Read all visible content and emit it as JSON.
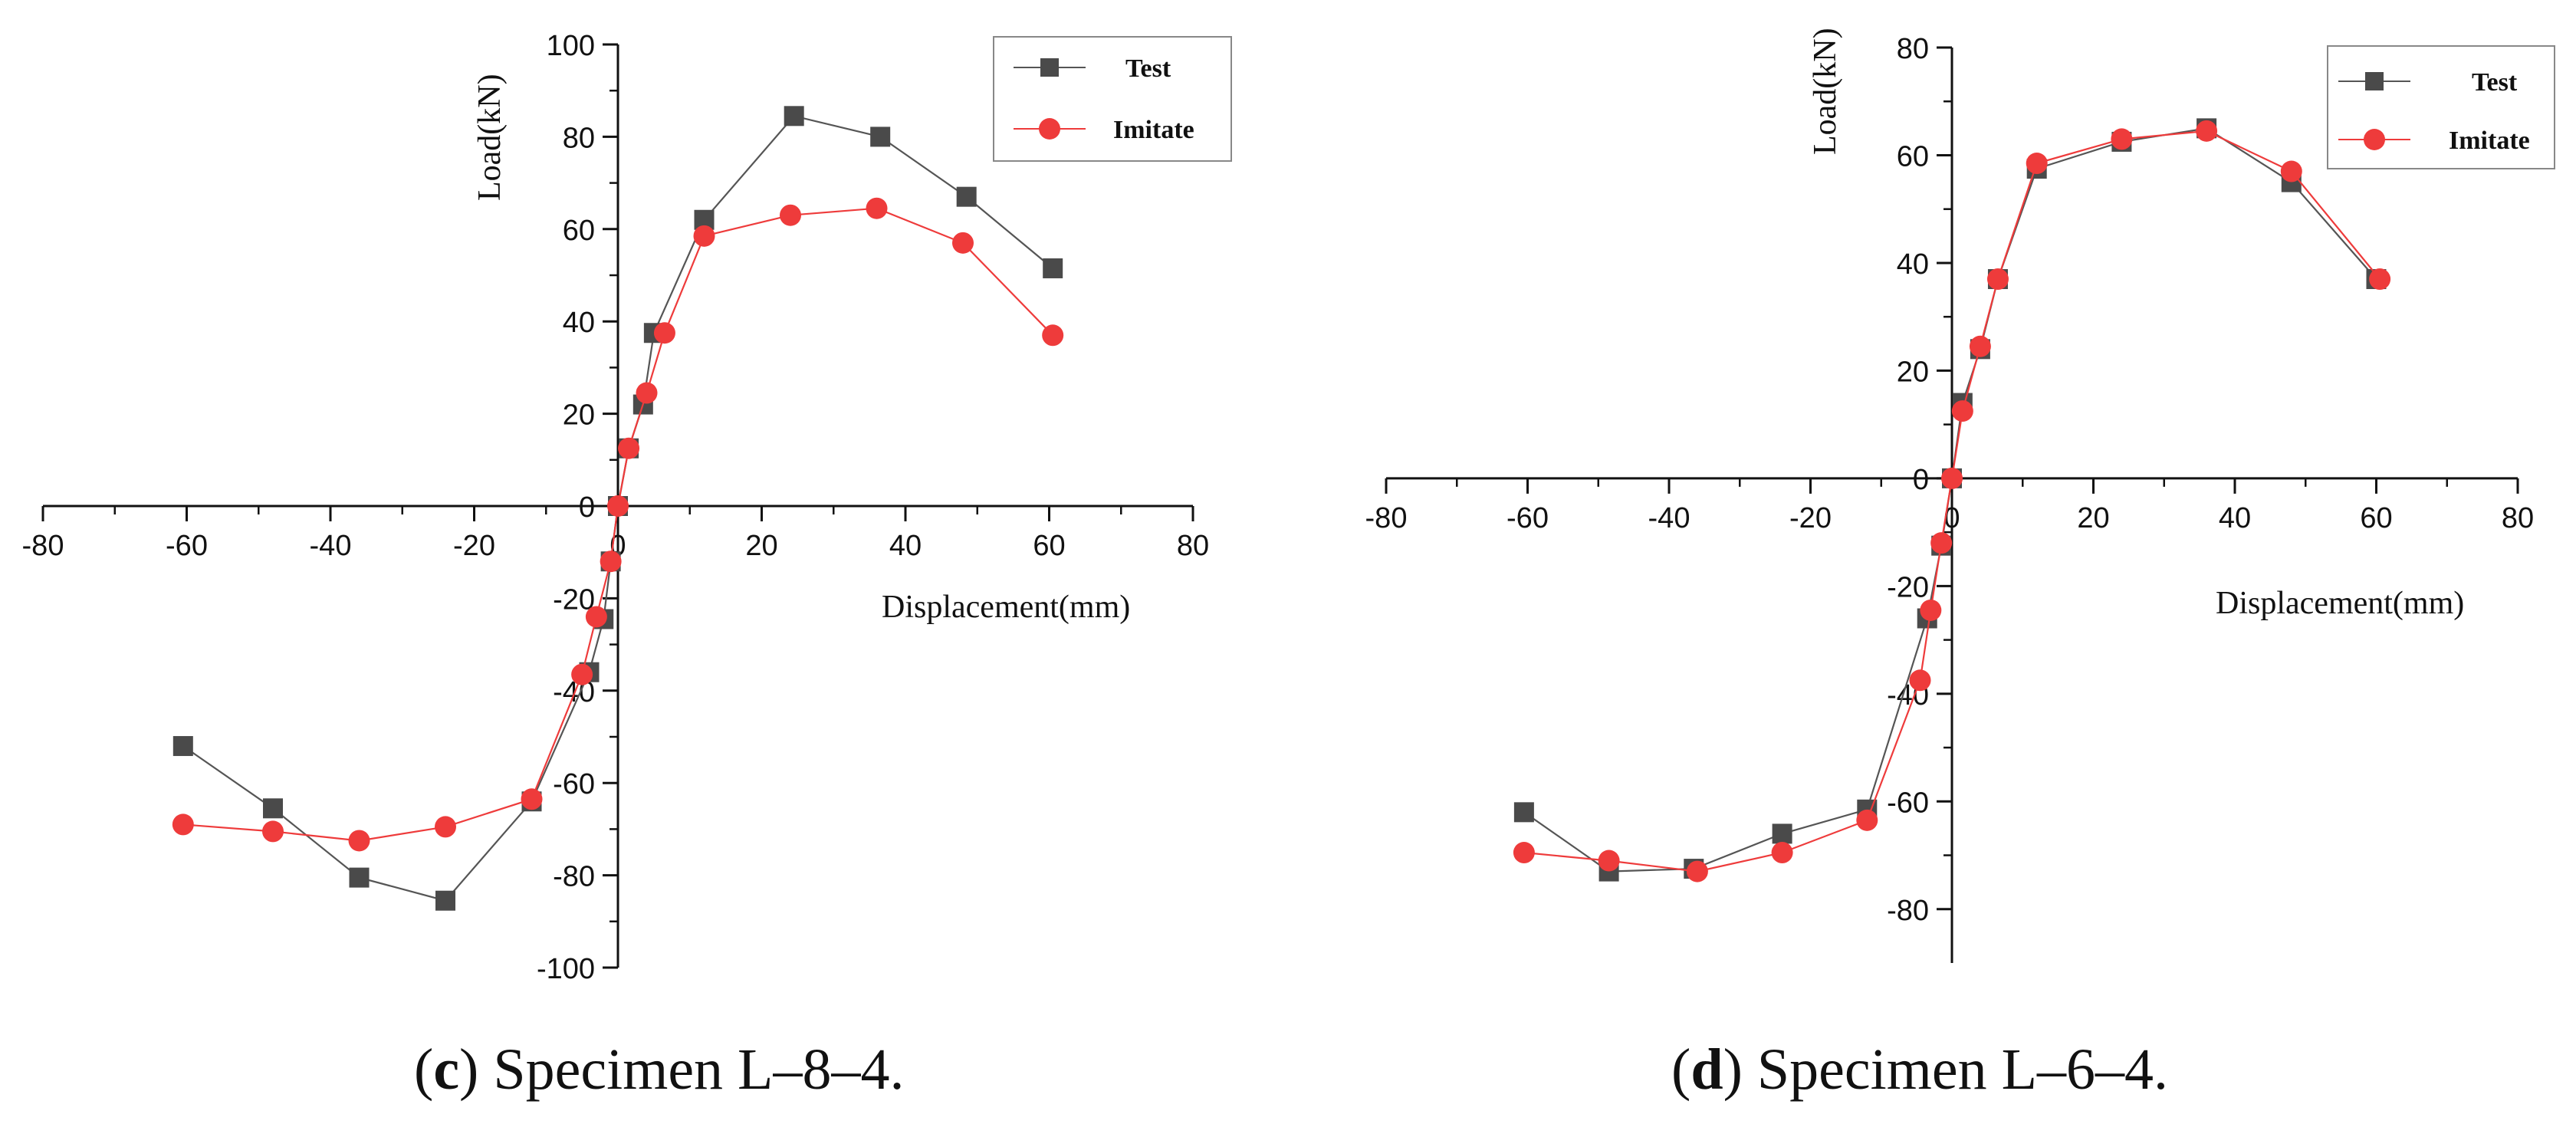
{
  "chart_data": [
    {
      "type": "line",
      "caption": {
        "open": "(",
        "letter": "c",
        "rest": ") Specimen L–8–4."
      },
      "xlabel": "Displacement(mm)",
      "ylabel": "Load(kN)",
      "xlim": [
        -80,
        80
      ],
      "ylim": [
        -100,
        100
      ],
      "xticks": [
        -80,
        -60,
        -40,
        -20,
        0,
        20,
        40,
        60,
        80
      ],
      "yticks": [
        -100,
        -80,
        -60,
        -40,
        -20,
        0,
        20,
        40,
        60,
        80,
        100
      ],
      "legend_position": "top-right",
      "series": [
        {
          "name": "Test",
          "color": "#555555",
          "marker": "square",
          "points": [
            [
              -60.5,
              -52
            ],
            [
              -48,
              -65.5
            ],
            [
              -36,
              -80.5
            ],
            [
              -24,
              -85.5
            ],
            [
              -12,
              -64
            ],
            [
              -4,
              -36
            ],
            [
              -2,
              -24.5
            ],
            [
              -1,
              -12
            ],
            [
              0,
              0
            ],
            [
              1.5,
              12.5
            ],
            [
              3.5,
              22
            ],
            [
              5,
              37.5
            ],
            [
              12,
              62
            ],
            [
              24.5,
              84.5
            ],
            [
              36.5,
              80
            ],
            [
              48.5,
              67
            ],
            [
              60.5,
              51.5
            ]
          ]
        },
        {
          "name": "Imitate",
          "color": "#ee3b3b",
          "marker": "circle",
          "points": [
            [
              -60.5,
              -69
            ],
            [
              -48,
              -70.5
            ],
            [
              -36,
              -72.5
            ],
            [
              -24,
              -69.5
            ],
            [
              -12,
              -63.5
            ],
            [
              -5,
              -36.5
            ],
            [
              -3,
              -24
            ],
            [
              -1,
              -12
            ],
            [
              0,
              0
            ],
            [
              1.5,
              12.5
            ],
            [
              4,
              24.5
            ],
            [
              6.5,
              37.5
            ],
            [
              12,
              58.5
            ],
            [
              24,
              63
            ],
            [
              36,
              64.5
            ],
            [
              48,
              57
            ],
            [
              60.5,
              37
            ]
          ]
        }
      ]
    },
    {
      "type": "line",
      "caption": {
        "open": "(",
        "letter": "d",
        "rest": ") Specimen L–6–4."
      },
      "xlabel": "Displacement(mm)",
      "ylabel": "Load(kN)",
      "xlim": [
        -80,
        80
      ],
      "ylim": [
        -90,
        80
      ],
      "xticks": [
        -80,
        -60,
        -40,
        -20,
        0,
        20,
        40,
        60,
        80
      ],
      "yticks": [
        -80,
        -60,
        -40,
        -20,
        0,
        20,
        40,
        60,
        80
      ],
      "legend_position": "top-right",
      "series": [
        {
          "name": "Test",
          "color": "#555555",
          "marker": "square",
          "points": [
            [
              -60.5,
              -62
            ],
            [
              -48.5,
              -73
            ],
            [
              -36.5,
              -72.5
            ],
            [
              -24,
              -66
            ],
            [
              -12,
              -61.5
            ],
            [
              -3.5,
              -26
            ],
            [
              -1.5,
              -12.5
            ],
            [
              0,
              0
            ],
            [
              1.5,
              14
            ],
            [
              4,
              24
            ],
            [
              6.5,
              37
            ],
            [
              12,
              57.5
            ],
            [
              24,
              62.5
            ],
            [
              36,
              65
            ],
            [
              48,
              55
            ],
            [
              60,
              37
            ]
          ]
        },
        {
          "name": "Imitate",
          "color": "#ee3b3b",
          "marker": "circle",
          "points": [
            [
              -60.5,
              -69.5
            ],
            [
              -48.5,
              -71
            ],
            [
              -36,
              -73
            ],
            [
              -24,
              -69.5
            ],
            [
              -12,
              -63.5
            ],
            [
              -4.5,
              -37.5
            ],
            [
              -3,
              -24.5
            ],
            [
              -1.5,
              -12
            ],
            [
              0,
              0
            ],
            [
              1.5,
              12.5
            ],
            [
              4,
              24.5
            ],
            [
              6.5,
              37
            ],
            [
              12,
              58.5
            ],
            [
              24,
              63
            ],
            [
              36,
              64.5
            ],
            [
              48,
              57
            ],
            [
              60.5,
              37
            ]
          ]
        }
      ]
    }
  ]
}
